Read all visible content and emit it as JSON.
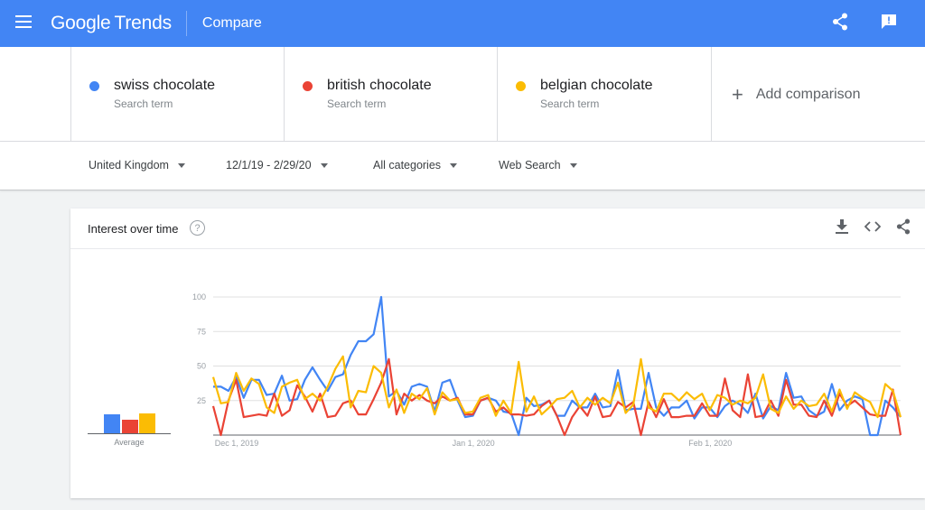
{
  "header": {
    "brand_google": "Google",
    "brand_trends": "Trends",
    "breadcrumb": "Compare"
  },
  "terms": [
    {
      "name": "swiss chocolate",
      "type": "Search term",
      "color": "#4285f4"
    },
    {
      "name": "british chocolate",
      "type": "Search term",
      "color": "#ea4335"
    },
    {
      "name": "belgian chocolate",
      "type": "Search term",
      "color": "#fbbc04"
    }
  ],
  "add_comparison": "Add comparison",
  "filters": {
    "region": "United Kingdom",
    "date_range": "12/1/19 - 2/29/20",
    "category": "All categories",
    "property": "Web Search"
  },
  "card": {
    "title": "Interest over time",
    "help": "?",
    "average_label": "Average"
  },
  "chart_data": {
    "type": "line",
    "ylim": [
      0,
      100
    ],
    "yticks": [
      "100",
      "75",
      "50",
      "25"
    ],
    "xtick_labels": [
      "Dec 1, 2019",
      "Jan 1, 2020",
      "Feb 1, 2020"
    ],
    "x_start": "2019-12-01",
    "x_end": "2020-02-29",
    "averages": [
      {
        "name": "swiss chocolate",
        "value": 27,
        "color": "#4285f4"
      },
      {
        "name": "british chocolate",
        "value": 20,
        "color": "#ea4335"
      },
      {
        "name": "belgian chocolate",
        "value": 28,
        "color": "#fbbc04"
      }
    ],
    "series": [
      {
        "name": "swiss chocolate",
        "color": "#4285f4",
        "values": [
          35,
          35,
          32,
          42,
          27,
          40,
          40,
          29,
          30,
          43,
          25,
          26,
          40,
          49,
          40,
          32,
          42,
          44,
          58,
          68,
          68,
          73,
          100,
          28,
          32,
          22,
          35,
          37,
          35,
          17,
          38,
          40,
          25,
          13,
          14,
          25,
          27,
          25,
          17,
          16,
          0,
          27,
          21,
          22,
          25,
          14,
          14,
          25,
          20,
          20,
          30,
          20,
          21,
          47,
          18,
          19,
          19,
          45,
          20,
          14,
          20,
          20,
          25,
          12,
          20,
          20,
          13,
          21,
          25,
          22,
          16,
          30,
          12,
          21,
          18,
          45,
          27,
          28,
          18,
          14,
          17,
          37,
          18,
          25,
          28,
          26,
          0,
          0,
          25,
          20,
          13
        ]
      },
      {
        "name": "british chocolate",
        "color": "#ea4335",
        "values": [
          21,
          0,
          25,
          40,
          13,
          14,
          15,
          14,
          30,
          14,
          18,
          36,
          28,
          17,
          30,
          13,
          14,
          23,
          25,
          15,
          15,
          26,
          38,
          55,
          15,
          30,
          25,
          29,
          25,
          23,
          28,
          25,
          27,
          15,
          15,
          25,
          27,
          17,
          20,
          15,
          15,
          14,
          15,
          21,
          25,
          14,
          0,
          13,
          21,
          14,
          28,
          13,
          14,
          24,
          20,
          24,
          0,
          24,
          13,
          26,
          13,
          13,
          14,
          14,
          23,
          14,
          14,
          41,
          18,
          13,
          44,
          13,
          14,
          25,
          14,
          40,
          22,
          22,
          14,
          13,
          25,
          14,
          30,
          21,
          25,
          20,
          15,
          14,
          14,
          33,
          0
        ]
      },
      {
        "name": "belgian chocolate",
        "color": "#fbbc04",
        "values": [
          42,
          23,
          24,
          45,
          32,
          41,
          37,
          20,
          16,
          35,
          38,
          40,
          26,
          30,
          25,
          35,
          48,
          57,
          20,
          32,
          31,
          50,
          45,
          20,
          33,
          16,
          30,
          26,
          34,
          15,
          31,
          25,
          26,
          16,
          17,
          27,
          29,
          14,
          25,
          16,
          53,
          17,
          28,
          15,
          20,
          26,
          27,
          32,
          20,
          27,
          22,
          27,
          23,
          38,
          16,
          22,
          55,
          20,
          17,
          30,
          30,
          25,
          31,
          26,
          30,
          18,
          29,
          27,
          22,
          25,
          23,
          27,
          44,
          19,
          16,
          28,
          19,
          25,
          21,
          22,
          30,
          17,
          33,
          19,
          31,
          27,
          24,
          13,
          37,
          32,
          13
        ]
      }
    ]
  }
}
